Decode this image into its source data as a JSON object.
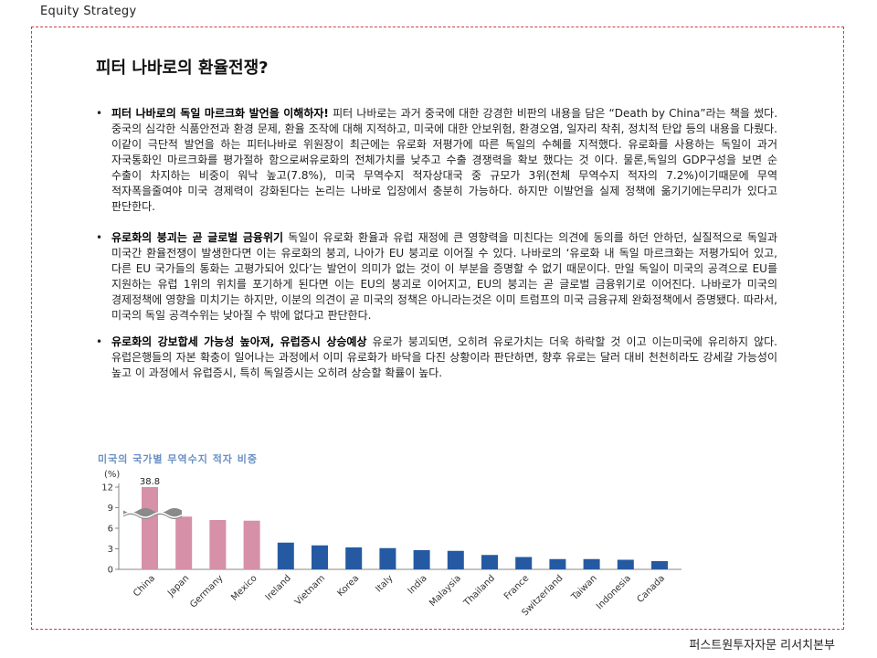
{
  "header": {
    "section_label": "Equity Strategy"
  },
  "title": "피터 나바로의 환율전쟁?",
  "bullets": [
    {
      "bold": "피터 나바로의 독일 마르크화 발언을 이해하자!",
      "text": " 피터 나바로는 과거 중국에 대한 강경한 비판의 내용을 담은 “Death by China”라는 책을 썼다. 중국의 심각한 식품안전과 환경 문제, 환율 조작에 대해 지적하고, 미국에 대한 안보위험, 환경오염, 일자리 착취, 정치적 탄압 등의 내용을 다뤘다. 이같이 극단적 발언을 하는 피터나바로 위원장이 최근에는 유로화 저평가에 따른 독일의 수혜를 지적했다. 유로화를 사용하는 독일이 과거 자국통화인 마르크화를 평가절하 함으로써유로화의 전체가치를 낮추고 수출 경쟁력을 확보 했다는 것 이다. 물론,독일의 GDP구성을 보면 순 수출이 차지하는 비중이 워낙 높고(7.8%), 미국 무역수지 적자상대국 중 규모가 3위(전체 무역수지 적자의 7.2%)이기때문에 무역 적자폭을줄여야 미국 경제력이 강화된다는 논리는 나바로 입장에서 충분히 가능하다. 하지만 이발언을 실제 정책에 옮기기에는무리가 있다고 판단한다."
    },
    {
      "bold": "유로화의 붕괴는 곧 글로벌 금융위기",
      "text": " 독일이 유로화 환율과 유럽 재정에 큰 영향력을 미친다는 의견에 동의를 하던 안하던, 실질적으로 독일과 미국간 환율전쟁이 발생한다면 이는 유로화의 붕괴, 나아가 EU 붕괴로 이어질 수 있다. 나바로의 ‘유로화 내 독일 마르크화는 저평가되어 있고, 다른 EU 국가들의 통화는 고평가되어 있다’는 발언이 의미가 없는 것이 이 부분을 증명할 수 없기 때문이다. 만일 독일이 미국의 공격으로 EU를 지원하는 유럽 1위의 위치를 포기하게 된다면 이는 EU의 붕괴로 이어지고, EU의 붕괴는 곧 글로벌 금융위기로 이어진다. 나바로가 미국의 경제정책에 영향을 미치기는 하지만, 이분의 의견이 곧 미국의 정책은 아니라는것은 이미 트럼프의 미국 금융규제 완화정책에서 증명됐다. 따라서, 미국의 독일 공격수위는 낮아질 수 밖에 없다고 판단한다."
    },
    {
      "bold": "유로화의 강보합세 가능성 높아져, 유럽증시 상승예상",
      "text": " 유로가 붕괴되면, 오히려 유로가치는 더욱 하락할 것 이고 이는미국에 유리하지 않다. 유럽은행들의 자본 확충이 일어나는 과정에서 이미 유로화가 바닥을 다진 상황이라 판단하면, 향후 유로는 달러 대비 천천히라도 강세갈 가능성이 높고 이 과정에서 유럽증시, 특히 독일증시는 오히려 상승할 확률이 높다."
    }
  ],
  "chart_data": {
    "type": "bar",
    "title": "미국의 국가별 무역수지 적자 비중",
    "ylabel": "(%)",
    "yticks": [
      0,
      3,
      6,
      9,
      12
    ],
    "ylim": [
      0,
      12
    ],
    "axis_break": true,
    "categories": [
      "China",
      "Japan",
      "Germany",
      "Mexico",
      "Ireland",
      "Vietnam",
      "Korea",
      "Italy",
      "India",
      "Malaysia",
      "Thailand",
      "France",
      "Switzerland",
      "Taiwan",
      "Indonesia",
      "Canada"
    ],
    "values": [
      38.8,
      7.7,
      7.2,
      7.1,
      3.9,
      3.5,
      3.2,
      3.1,
      2.8,
      2.7,
      2.1,
      1.8,
      1.5,
      1.5,
      1.4,
      1.2
    ],
    "data_labels": {
      "China": "38.8"
    },
    "bar_colors": {
      "highlight": "#d690a7",
      "other": "#255aa2"
    },
    "highlighted_categories": [
      "China",
      "Japan",
      "Germany",
      "Mexico"
    ]
  },
  "footer": {
    "source_label": "퍼스트원투자자문 리서치본부"
  }
}
